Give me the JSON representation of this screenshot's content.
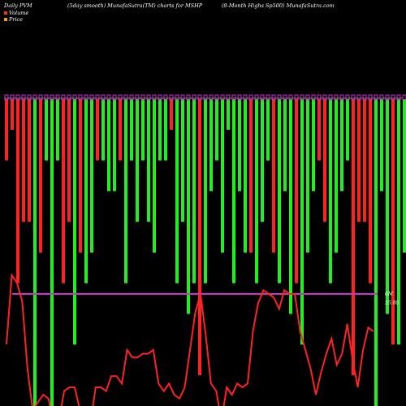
{
  "header": {
    "left": "Daily PVM",
    "center_left": "(5day smooth) MunafaSutra(TM) charts for MSHP",
    "right": "(8-Month Highs Sp500) MunafaSutra.com"
  },
  "legend": [
    {
      "label": "Volume",
      "color": "#ff3300"
    },
    {
      "label": "Price",
      "color": "#ff9900"
    }
  ],
  "colors": {
    "up": "#22ee22",
    "down": "#ff2222",
    "price": "#ff2222",
    "ref_line": "#cc33cc",
    "top_line": "#888888",
    "background": "#000000"
  },
  "chart_data": {
    "type": "bar",
    "title": "Daily PVM (5day smooth) MunafaSutra(TM) charts for MSHP",
    "series": [
      {
        "name": "Volume",
        "kind": "bar",
        "direction": [
          "down",
          "down",
          "down",
          "down",
          "down",
          "up",
          "down",
          "up",
          "up",
          "up",
          "down",
          "down",
          "up",
          "down",
          "up",
          "up",
          "down",
          "up",
          "up",
          "up",
          "down",
          "up",
          "up",
          "up",
          "up",
          "up",
          "up",
          "up",
          "up",
          "down",
          "up",
          "up",
          "up",
          "up",
          "down",
          "up",
          "up",
          "up",
          "up",
          "up",
          "up",
          "up",
          "up",
          "down",
          "up",
          "up",
          "up",
          "down",
          "up",
          "up",
          "up",
          "down",
          "up",
          "up",
          "up",
          "down",
          "down",
          "up",
          "up",
          "up",
          "up",
          "down",
          "down",
          "down",
          "down",
          "up",
          "up",
          "up",
          "down",
          "up",
          "up"
        ],
        "values": [
          0.2,
          0.1,
          0.6,
          0.4,
          0.4,
          1.0,
          0.5,
          0.2,
          1.0,
          0.2,
          0.6,
          0.4,
          0.8,
          0.5,
          0.6,
          0.5,
          0.2,
          0.2,
          0.3,
          0.3,
          0.2,
          0.6,
          0.2,
          0.4,
          0.2,
          0.4,
          0.5,
          0.2,
          0.2,
          0.1,
          0.6,
          0.4,
          0.7,
          0.6,
          0.9,
          0.6,
          0.3,
          0.2,
          0.5,
          0.1,
          0.6,
          0.3,
          0.5,
          0.5,
          0.6,
          0.4,
          0.2,
          0.5,
          0.6,
          0.3,
          0.7,
          0.6,
          0.8,
          0.5,
          0.3,
          0.2,
          0.4,
          0.6,
          0.5,
          0.3,
          0.2,
          0.9,
          0.4,
          0.4,
          0.6,
          1.0,
          0.3,
          0.7,
          0.8,
          0.8,
          0.5
        ]
      },
      {
        "name": "Price",
        "kind": "line",
        "values": [
          0.33,
          0.7,
          0.66,
          0.56,
          0.2,
          -0.02,
          0.02,
          0.06,
          0.04,
          -0.1,
          -0.08,
          0.08,
          0.1,
          0.1,
          -0.02,
          -0.08,
          -0.1,
          0.1,
          0.1,
          0.08,
          0.16,
          0.16,
          0.12,
          0.3,
          0.26,
          0.26,
          0.28,
          0.28,
          0.3,
          0.12,
          0.08,
          0.12,
          0.06,
          0.04,
          0.1,
          0.3,
          0.5,
          0.6,
          0.38,
          0.12,
          0.08,
          -0.08,
          0.1,
          0.06,
          0.12,
          0.1,
          0.12,
          0.4,
          0.55,
          0.62,
          0.6,
          0.58,
          0.52,
          0.62,
          0.6,
          0.6,
          0.4,
          0.3,
          0.2,
          0.06,
          0.18,
          0.28,
          0.36,
          0.22,
          0.28,
          0.44,
          0.25,
          0.1,
          0.3,
          0.42,
          0.4
        ]
      }
    ],
    "annotations": [
      "0M",
      "55.00"
    ],
    "grid": false
  }
}
